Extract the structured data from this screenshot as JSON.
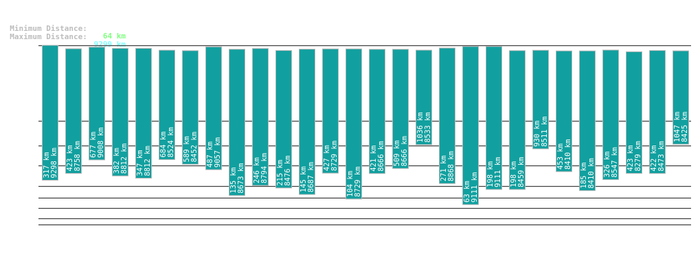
{
  "header": {
    "min_label": "Minimum Distance:",
    "min_value": "64 km",
    "max_label": "Maximum Distance:",
    "max_value": "9299 km"
  },
  "colors": {
    "bar": "#11a09f",
    "bar_border": "#b8b8b8",
    "min_value": "#80ff80",
    "max_value": "#80ffff",
    "label_text": "#bdbdbd",
    "gridline": "#404040"
  },
  "chart_data": {
    "type": "bar",
    "unit": "km",
    "series": [
      {
        "name": "min",
        "values": [
          317,
          423,
          677,
          382,
          347,
          684,
          589,
          487,
          135,
          246,
          215,
          145,
          427,
          104,
          421,
          509,
          1036,
          271,
          63,
          198,
          198,
          930,
          453,
          185,
          326,
          423,
          422,
          1047
        ]
      },
      {
        "name": "max",
        "values": [
          9298,
          8758,
          9008,
          8812,
          8812,
          8524,
          8452,
          9057,
          8673,
          8794,
          8476,
          8687,
          8729,
          8729,
          8666,
          8666,
          8533,
          8868,
          9111,
          9111,
          8459,
          8511,
          8410,
          8410,
          8547,
          8279,
          8473,
          8425
        ]
      }
    ]
  }
}
